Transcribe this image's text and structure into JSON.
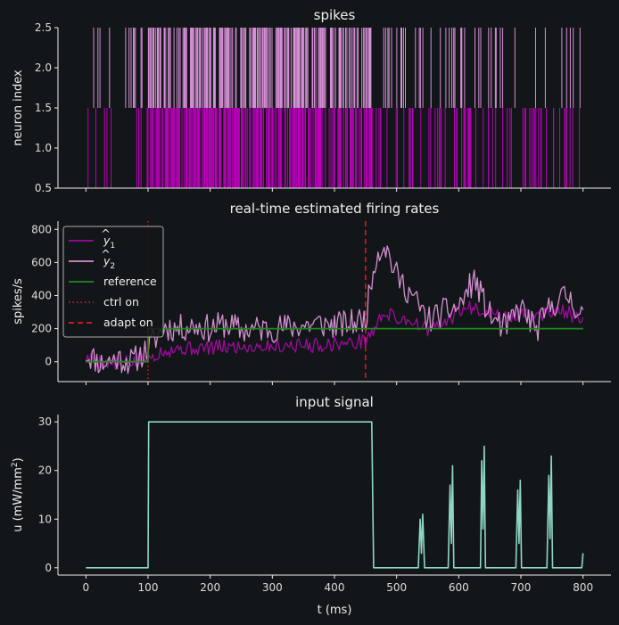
{
  "colors": {
    "background": "#131619",
    "spike_upper": "#d58fd5",
    "spike_lower": "#b800b8",
    "y1": "#9c0b9c",
    "y2": "#d490d0",
    "reference": "#1e8a1e",
    "ctrl_on": "#d01c1c",
    "adapt_on": "#e01a1a",
    "input": "#8ed6c4",
    "axes": "#eeeeee"
  },
  "chart_data": [
    {
      "type": "raster",
      "title": "spikes",
      "ylabel": "neuron index",
      "xlim": [
        -45,
        845
      ],
      "ylim": [
        0.5,
        2.5
      ],
      "yticks": [
        "0.5",
        "1.0",
        "1.5",
        "2.0",
        "2.5"
      ],
      "series": [
        {
          "neuron": 2,
          "span": [
            1.5,
            2.5
          ],
          "color_key": "spike_upper",
          "rate_segments": [
            {
              "range": [
                0,
                100
              ],
              "rate_per_ms": 0.12
            },
            {
              "range": [
                100,
                460
              ],
              "rate_per_ms": 0.55
            },
            {
              "range": [
                460,
                800
              ],
              "rate_per_ms": 0.12
            }
          ]
        },
        {
          "neuron": 1,
          "span": [
            0.5,
            1.5
          ],
          "color_key": "spike_lower",
          "rate_segments": [
            {
              "range": [
                0,
                100
              ],
              "rate_per_ms": 0.08
            },
            {
              "range": [
                100,
                460
              ],
              "rate_per_ms": 0.6
            },
            {
              "range": [
                460,
                800
              ],
              "rate_per_ms": 0.18
            }
          ]
        }
      ]
    },
    {
      "type": "line",
      "title": "real-time estimated firing rates",
      "ylabel": "spikes/s",
      "xlim": [
        -45,
        845
      ],
      "ylim": [
        -120,
        850
      ],
      "yticks": [
        "0",
        "200",
        "400",
        "600",
        "800"
      ],
      "legend": {
        "placement": "top-left",
        "items": [
          {
            "label": "ŷ1",
            "base": "y",
            "subscript": "1",
            "color_key": "y1",
            "style": "solid"
          },
          {
            "label": "ŷ2",
            "base": "y",
            "subscript": "2",
            "color_key": "y2",
            "style": "solid"
          },
          {
            "label": "reference",
            "color_key": "reference",
            "style": "solid"
          },
          {
            "label": "ctrl on",
            "color_key": "ctrl_on",
            "style": "dotted"
          },
          {
            "label": "adapt on",
            "color_key": "adapt_on",
            "style": "dashed"
          }
        ]
      },
      "reference": {
        "x": [
          0,
          100,
          100,
          800
        ],
        "y": [
          0,
          0,
          200,
          200
        ]
      },
      "vlines": [
        {
          "x": 100,
          "name": "ctrl on"
        },
        {
          "x": 450,
          "name": "adapt on"
        }
      ],
      "series": [
        {
          "name": "ŷ1",
          "color_key": "y1",
          "x": [
            0,
            25,
            50,
            75,
            100,
            125,
            150,
            175,
            200,
            225,
            250,
            275,
            300,
            325,
            350,
            375,
            400,
            425,
            450,
            465,
            480,
            500,
            525,
            550,
            575,
            600,
            625,
            650,
            675,
            700,
            725,
            750,
            775,
            800
          ],
          "y": [
            20,
            0,
            -10,
            0,
            20,
            70,
            80,
            80,
            85,
            90,
            90,
            95,
            95,
            100,
            100,
            100,
            110,
            110,
            130,
            200,
            300,
            260,
            250,
            190,
            220,
            310,
            330,
            300,
            260,
            290,
            270,
            310,
            300,
            230
          ]
        },
        {
          "name": "ŷ2",
          "color_key": "y2",
          "x": [
            0,
            25,
            50,
            75,
            100,
            125,
            150,
            175,
            200,
            225,
            250,
            275,
            300,
            325,
            350,
            375,
            400,
            425,
            450,
            465,
            480,
            500,
            525,
            550,
            575,
            600,
            625,
            650,
            675,
            700,
            725,
            750,
            775,
            800
          ],
          "y": [
            50,
            -10,
            20,
            0,
            80,
            210,
            200,
            220,
            200,
            230,
            190,
            200,
            200,
            210,
            220,
            230,
            220,
            230,
            260,
            620,
            720,
            520,
            400,
            250,
            300,
            330,
            500,
            280,
            200,
            330,
            190,
            350,
            400,
            280
          ]
        }
      ]
    },
    {
      "type": "line",
      "title": "input signal",
      "ylabel": "u (mW/mm2)",
      "ylabel_base": "u (mW/mm",
      "ylabel_sup": "2",
      "ylabel_end": ")",
      "xlabel": "t (ms)",
      "xlim": [
        -45,
        845
      ],
      "ylim": [
        -1.5,
        31.5
      ],
      "yticks": [
        "0",
        "10",
        "20",
        "30"
      ],
      "xticks": [
        "0",
        "100",
        "200",
        "300",
        "400",
        "500",
        "600",
        "700",
        "800"
      ],
      "series": [
        {
          "name": "u",
          "color_key": "input",
          "x": [
            0,
            100,
            101,
            460,
            463,
            535,
            538,
            540,
            542,
            545,
            583,
            586,
            588,
            590,
            592,
            635,
            637,
            639,
            641,
            643,
            692,
            695,
            697,
            699,
            701,
            742,
            745,
            747,
            749,
            751,
            798,
            800
          ],
          "y": [
            0,
            0,
            30,
            30,
            0,
            0,
            10,
            3,
            11,
            0,
            0,
            17,
            5,
            21,
            0,
            0,
            22,
            8,
            25,
            0,
            0,
            16,
            5,
            18,
            0,
            0,
            19,
            6,
            23,
            0,
            0,
            3
          ]
        }
      ]
    }
  ]
}
